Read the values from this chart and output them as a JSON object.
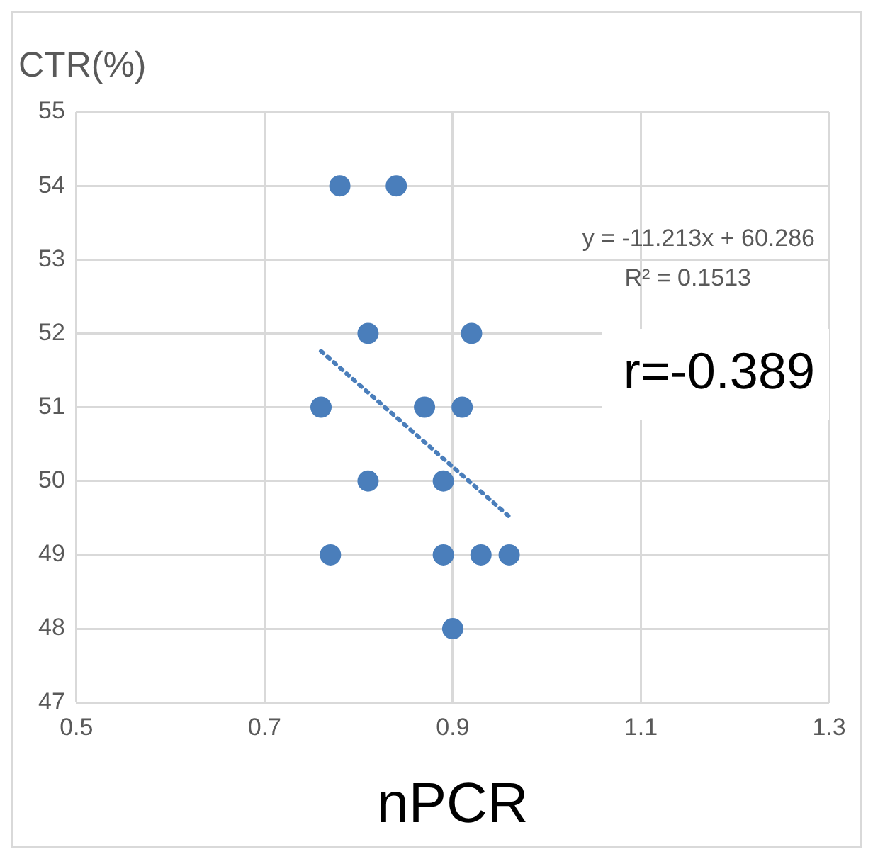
{
  "chart_data": {
    "type": "scatter",
    "xlabel": "nPCR",
    "ylabel": "CTR(%)",
    "xlim": [
      0.5,
      1.3
    ],
    "xticks": [
      0.5,
      0.7,
      0.9,
      1.1,
      1.3
    ],
    "ylim": [
      47,
      55
    ],
    "yticks": [
      47,
      48,
      49,
      50,
      51,
      52,
      53,
      54,
      55
    ],
    "grid": true,
    "legend": false,
    "marker": "circle",
    "series": [
      {
        "color": "#4a7ebb",
        "x": [
          0.78,
          0.84,
          0.81,
          0.92,
          0.76,
          0.87,
          0.91,
          0.81,
          0.89,
          0.77,
          0.89,
          0.93,
          0.96,
          0.9
        ],
        "values": [
          54,
          54,
          52,
          52,
          51,
          51,
          51,
          50,
          50,
          49,
          49,
          49,
          49,
          48
        ]
      },
      {
        "type": "line",
        "color": "#4a7ebb",
        "line_style": "dotted",
        "marker": "none",
        "x": [
          0.76,
          0.96
        ],
        "values": [
          51.76,
          49.52
        ]
      }
    ],
    "annotations": [
      "y = -11.213x + 60.286",
      "R² = 0.1513",
      "r=-0.389"
    ]
  }
}
